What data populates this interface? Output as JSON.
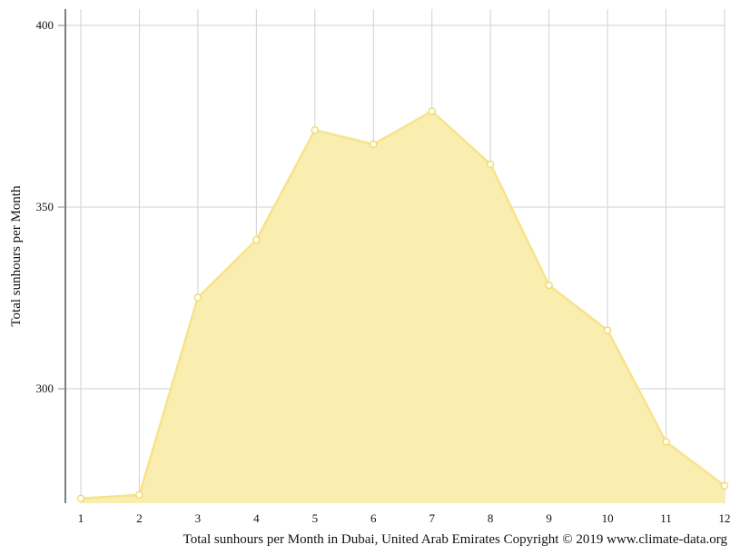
{
  "chart_data": {
    "type": "area",
    "title": "",
    "xlabel": "",
    "ylabel": "Total sunhours per Month",
    "caption": "Total sunhours per Month in Dubai, United Arab Emirates Copyright © 2019 www.climate-data.org",
    "categories": [
      "1",
      "2",
      "3",
      "4",
      "5",
      "6",
      "7",
      "8",
      "9",
      "10",
      "11",
      "12"
    ],
    "yticks": [
      300,
      350,
      400
    ],
    "ylim": [
      268.5,
      404.5
    ],
    "grid": true,
    "legend": "none",
    "series": [
      {
        "values": [
          269.8,
          270.8,
          325.1,
          341.0,
          371.2,
          367.3,
          376.4,
          361.8,
          328.5,
          316.1,
          285.4,
          273.3
        ],
        "fill_color": "#f9edb0",
        "line_color": "#f7e38a",
        "marker_color": "#f1d764"
      }
    ]
  }
}
